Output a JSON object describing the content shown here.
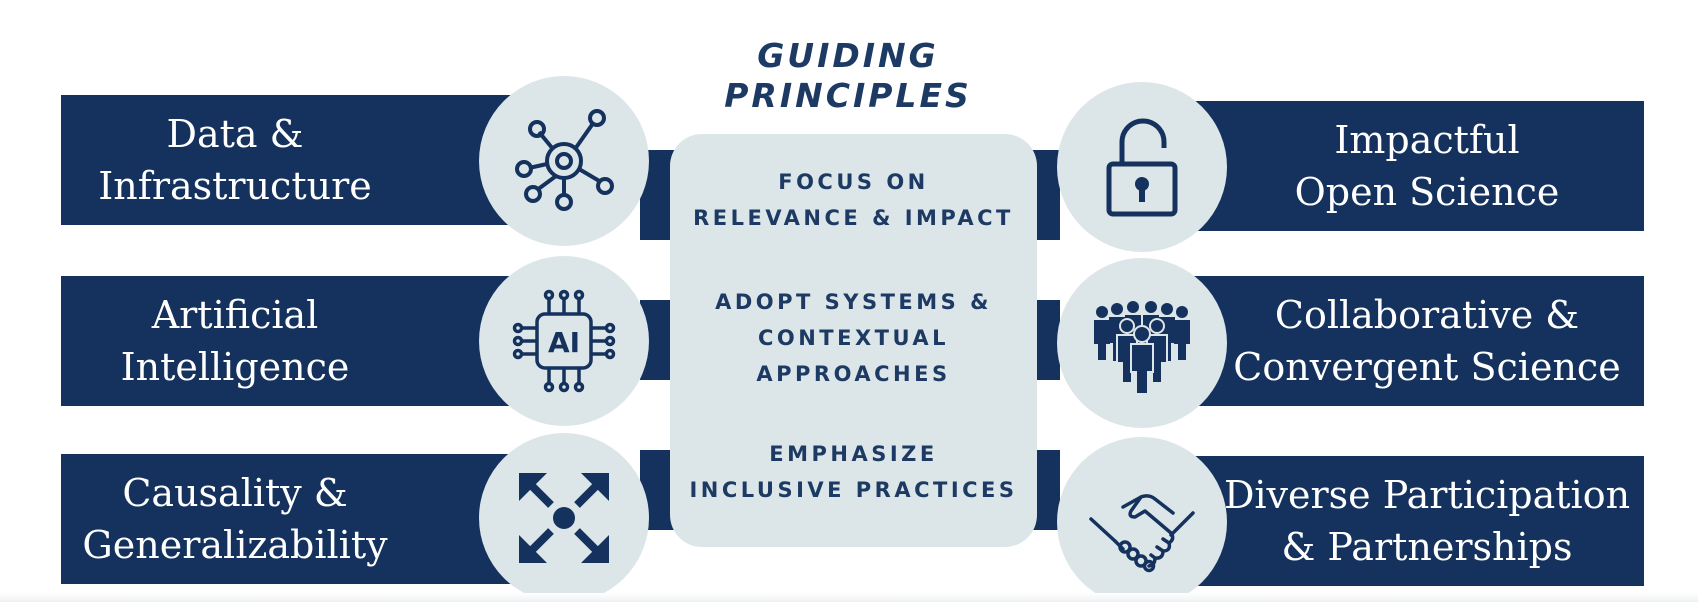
{
  "title": {
    "line1": "GUIDING",
    "line2": "PRINCIPLES"
  },
  "principles": [
    {
      "lines": [
        "FOCUS ON",
        "RELEVANCE & IMPACT"
      ]
    },
    {
      "lines": [
        "ADOPT SYSTEMS &",
        "CONTEXTUAL",
        "APPROACHES"
      ]
    },
    {
      "lines": [
        "EMPHASIZE",
        "INCLUSIVE PRACTICES"
      ]
    }
  ],
  "left_items": [
    {
      "lines": [
        "Data &",
        "Infrastructure"
      ],
      "icon": "network-nodes-icon"
    },
    {
      "lines": [
        "Artificial",
        "Intelligence"
      ],
      "icon": "ai-chip-icon",
      "icon_text": "AI"
    },
    {
      "lines": [
        "Causality &",
        "Generalizability"
      ],
      "icon": "expand-arrows-icon"
    }
  ],
  "right_items": [
    {
      "lines": [
        "Impactful",
        "Open Science"
      ],
      "icon": "open-padlock-icon"
    },
    {
      "lines": [
        "Collaborative &",
        "Convergent Science"
      ],
      "icon": "group-people-icon"
    },
    {
      "lines": [
        "Diverse Participation",
        "& Partnerships"
      ],
      "icon": "handshake-icon"
    }
  ],
  "colors": {
    "navy": "#14325d",
    "title_navy": "#1c3a63",
    "light_panel": "#dce6e8",
    "background": "#ffffff"
  }
}
